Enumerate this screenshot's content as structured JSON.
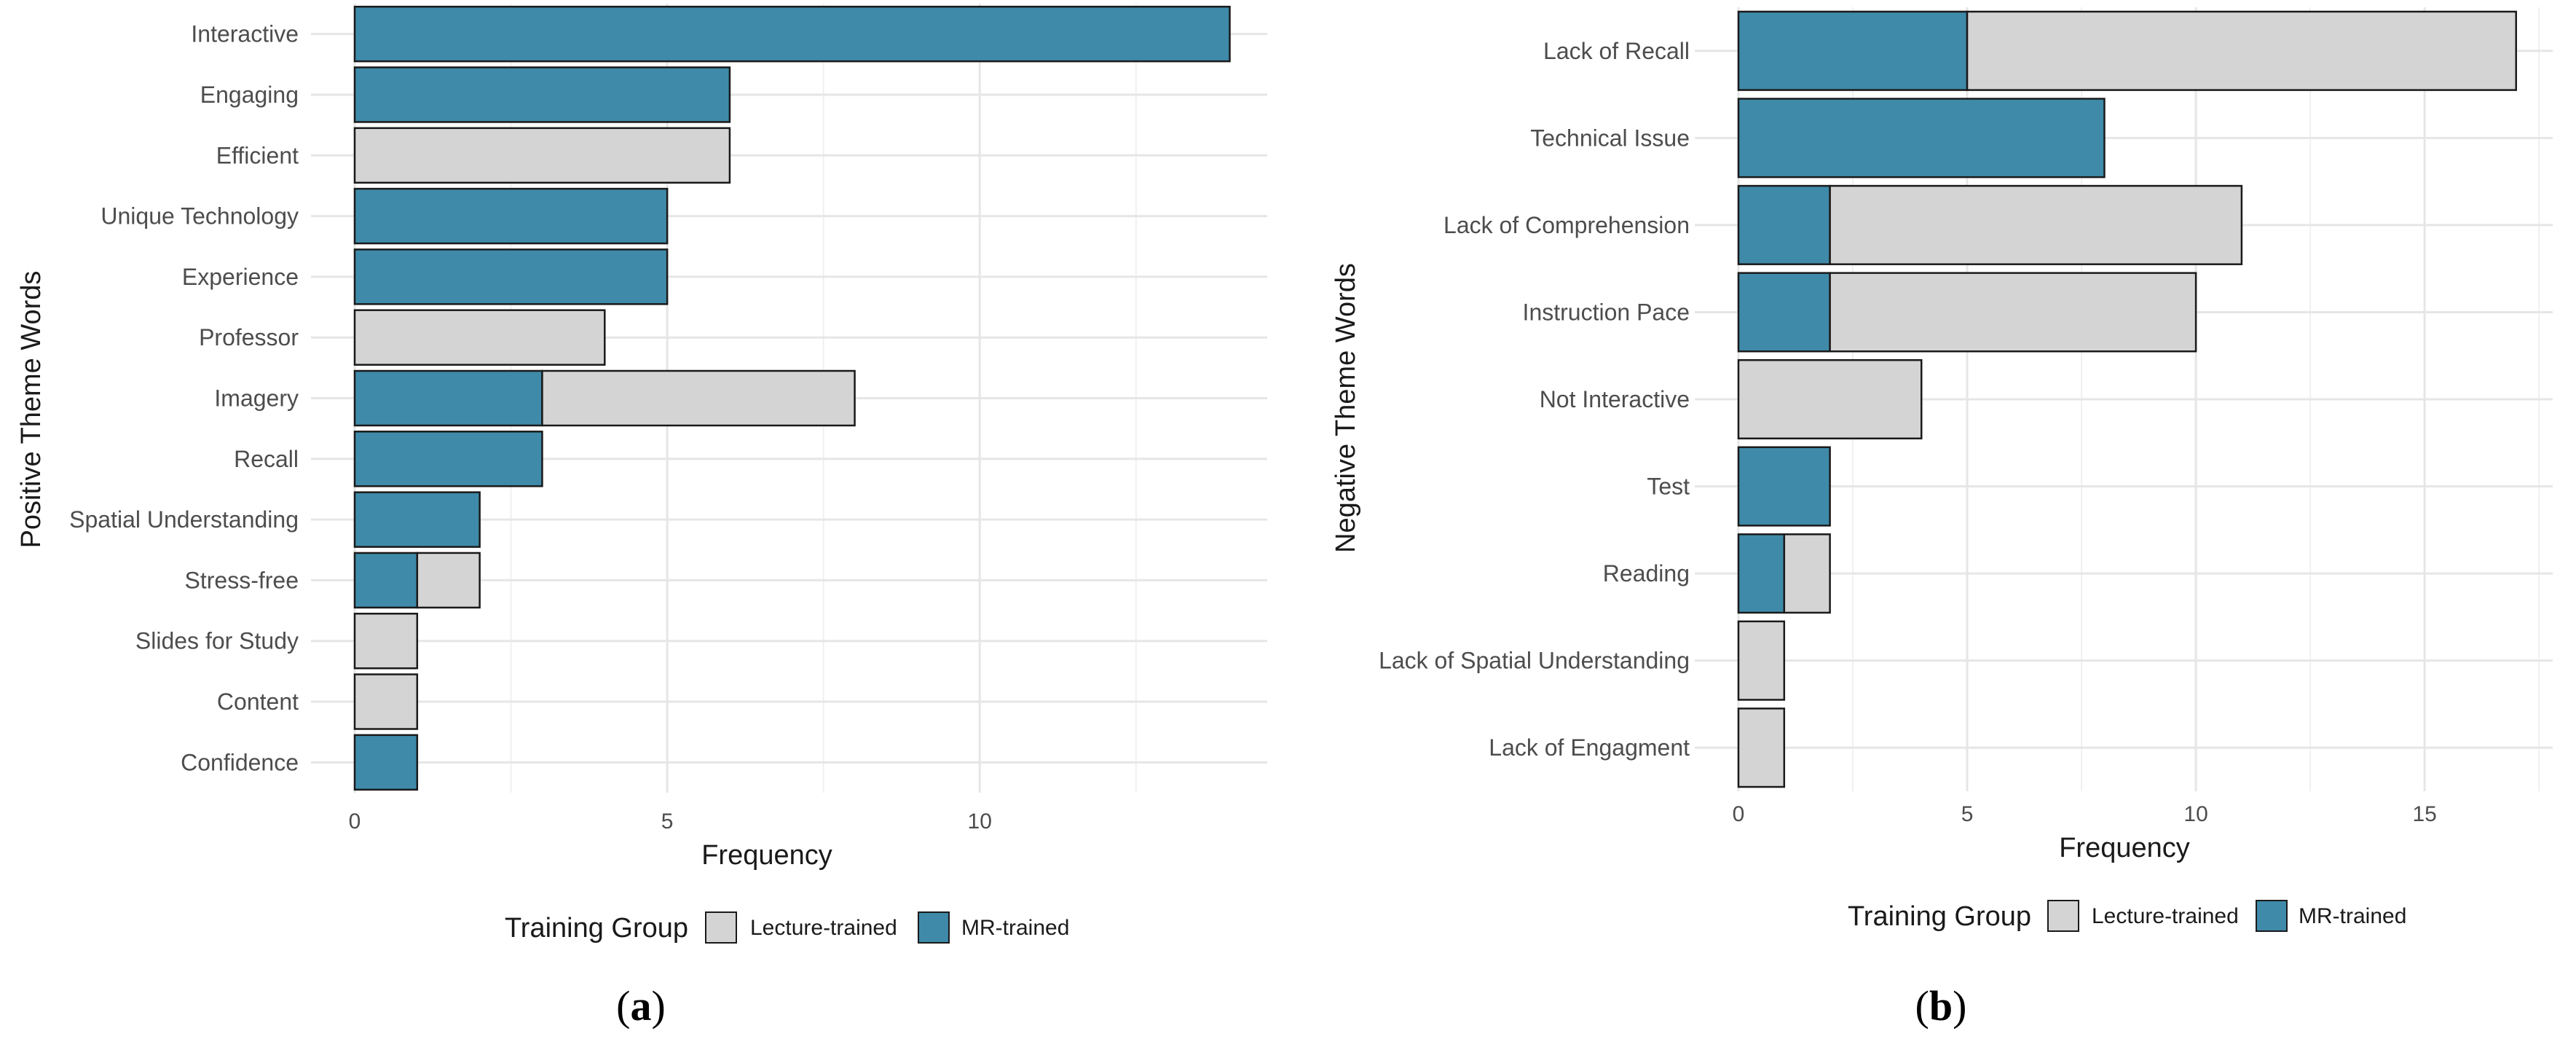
{
  "colors": {
    "lecture": "#d4d4d4",
    "mr": "#3f8aa9",
    "grid_major": "#e6e6e6",
    "grid_minor": "#f0f0f0",
    "border": "#1a1a1a"
  },
  "chart_data": [
    {
      "type": "bar",
      "orientation": "horizontal",
      "stacked": true,
      "caption_letter": "a",
      "ylabel": "Positive Theme Words",
      "xlabel": "Frequency",
      "xlim": [
        0,
        14.6
      ],
      "xticks": [
        0,
        5,
        10
      ],
      "grid": true,
      "legend": {
        "title": "Training Group",
        "position": "bottom",
        "items": [
          "Lecture-trained",
          "MR-trained"
        ]
      },
      "categories": [
        "Interactive",
        "Engaging",
        "Efficient",
        "Unique Technology",
        "Experience",
        "Professor",
        "Imagery",
        "Recall",
        "Spatial Understanding",
        "Stress-free",
        "Slides for Study",
        "Content",
        "Confidence"
      ],
      "series": [
        {
          "name": "MR-trained",
          "values": [
            14,
            6,
            0,
            5,
            5,
            0,
            3,
            3,
            2,
            1,
            0,
            0,
            1
          ]
        },
        {
          "name": "Lecture-trained",
          "values": [
            0,
            0,
            6,
            0,
            0,
            4,
            5,
            0,
            0,
            1,
            1,
            1,
            0
          ]
        }
      ]
    },
    {
      "type": "bar",
      "orientation": "horizontal",
      "stacked": true,
      "caption_letter": "b",
      "ylabel": "Negative Theme Words",
      "xlabel": "Frequency",
      "xlim": [
        0,
        17.8
      ],
      "xticks": [
        0,
        5,
        10,
        15
      ],
      "grid": true,
      "legend": {
        "title": "Training Group",
        "position": "bottom",
        "items": [
          "Lecture-trained",
          "MR-trained"
        ]
      },
      "categories": [
        "Lack of Recall",
        "Technical Issue",
        "Lack of Comprehension",
        "Instruction Pace",
        "Not Interactive",
        "Test",
        "Reading",
        "Lack of Spatial Understanding",
        "Lack of Engagment"
      ],
      "series": [
        {
          "name": "MR-trained",
          "values": [
            5,
            8,
            2,
            2,
            0,
            2,
            1,
            0,
            0
          ]
        },
        {
          "name": "Lecture-trained",
          "values": [
            12,
            0,
            9,
            8,
            4,
            0,
            1,
            1,
            1
          ]
        }
      ]
    }
  ]
}
